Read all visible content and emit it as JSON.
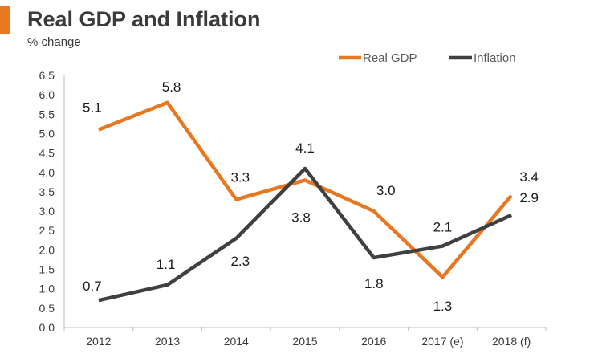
{
  "chart_data": {
    "type": "line",
    "title": "Real GDP and Inflation",
    "ylabel": "% change",
    "xlabel": "",
    "categories": [
      "2012",
      "2013",
      "2014",
      "2015",
      "2016",
      "2017 (e)",
      "2018 (f)"
    ],
    "ylim": [
      0,
      6.5
    ],
    "yticks": [
      "0.0",
      "0.5",
      "1.0",
      "1.5",
      "2.0",
      "2.5",
      "3.0",
      "3.5",
      "4.0",
      "4.5",
      "5.0",
      "5.5",
      "6.0",
      "6.5"
    ],
    "grid": false,
    "legend_position": "top-right",
    "series": [
      {
        "name": "Real GDP",
        "color": "#e87722",
        "values": [
          5.1,
          5.8,
          3.3,
          3.8,
          3.0,
          1.3,
          3.4
        ],
        "labels": [
          "5.1",
          "5.8",
          "3.3",
          "3.8",
          "3.0",
          "1.3",
          "3.4"
        ]
      },
      {
        "name": "Inflation",
        "color": "#404040",
        "values": [
          0.7,
          1.1,
          2.3,
          4.1,
          1.8,
          2.1,
          2.9
        ],
        "labels": [
          "0.7",
          "1.1",
          "2.3",
          "4.1",
          "1.8",
          "2.1",
          "2.9"
        ]
      }
    ]
  }
}
